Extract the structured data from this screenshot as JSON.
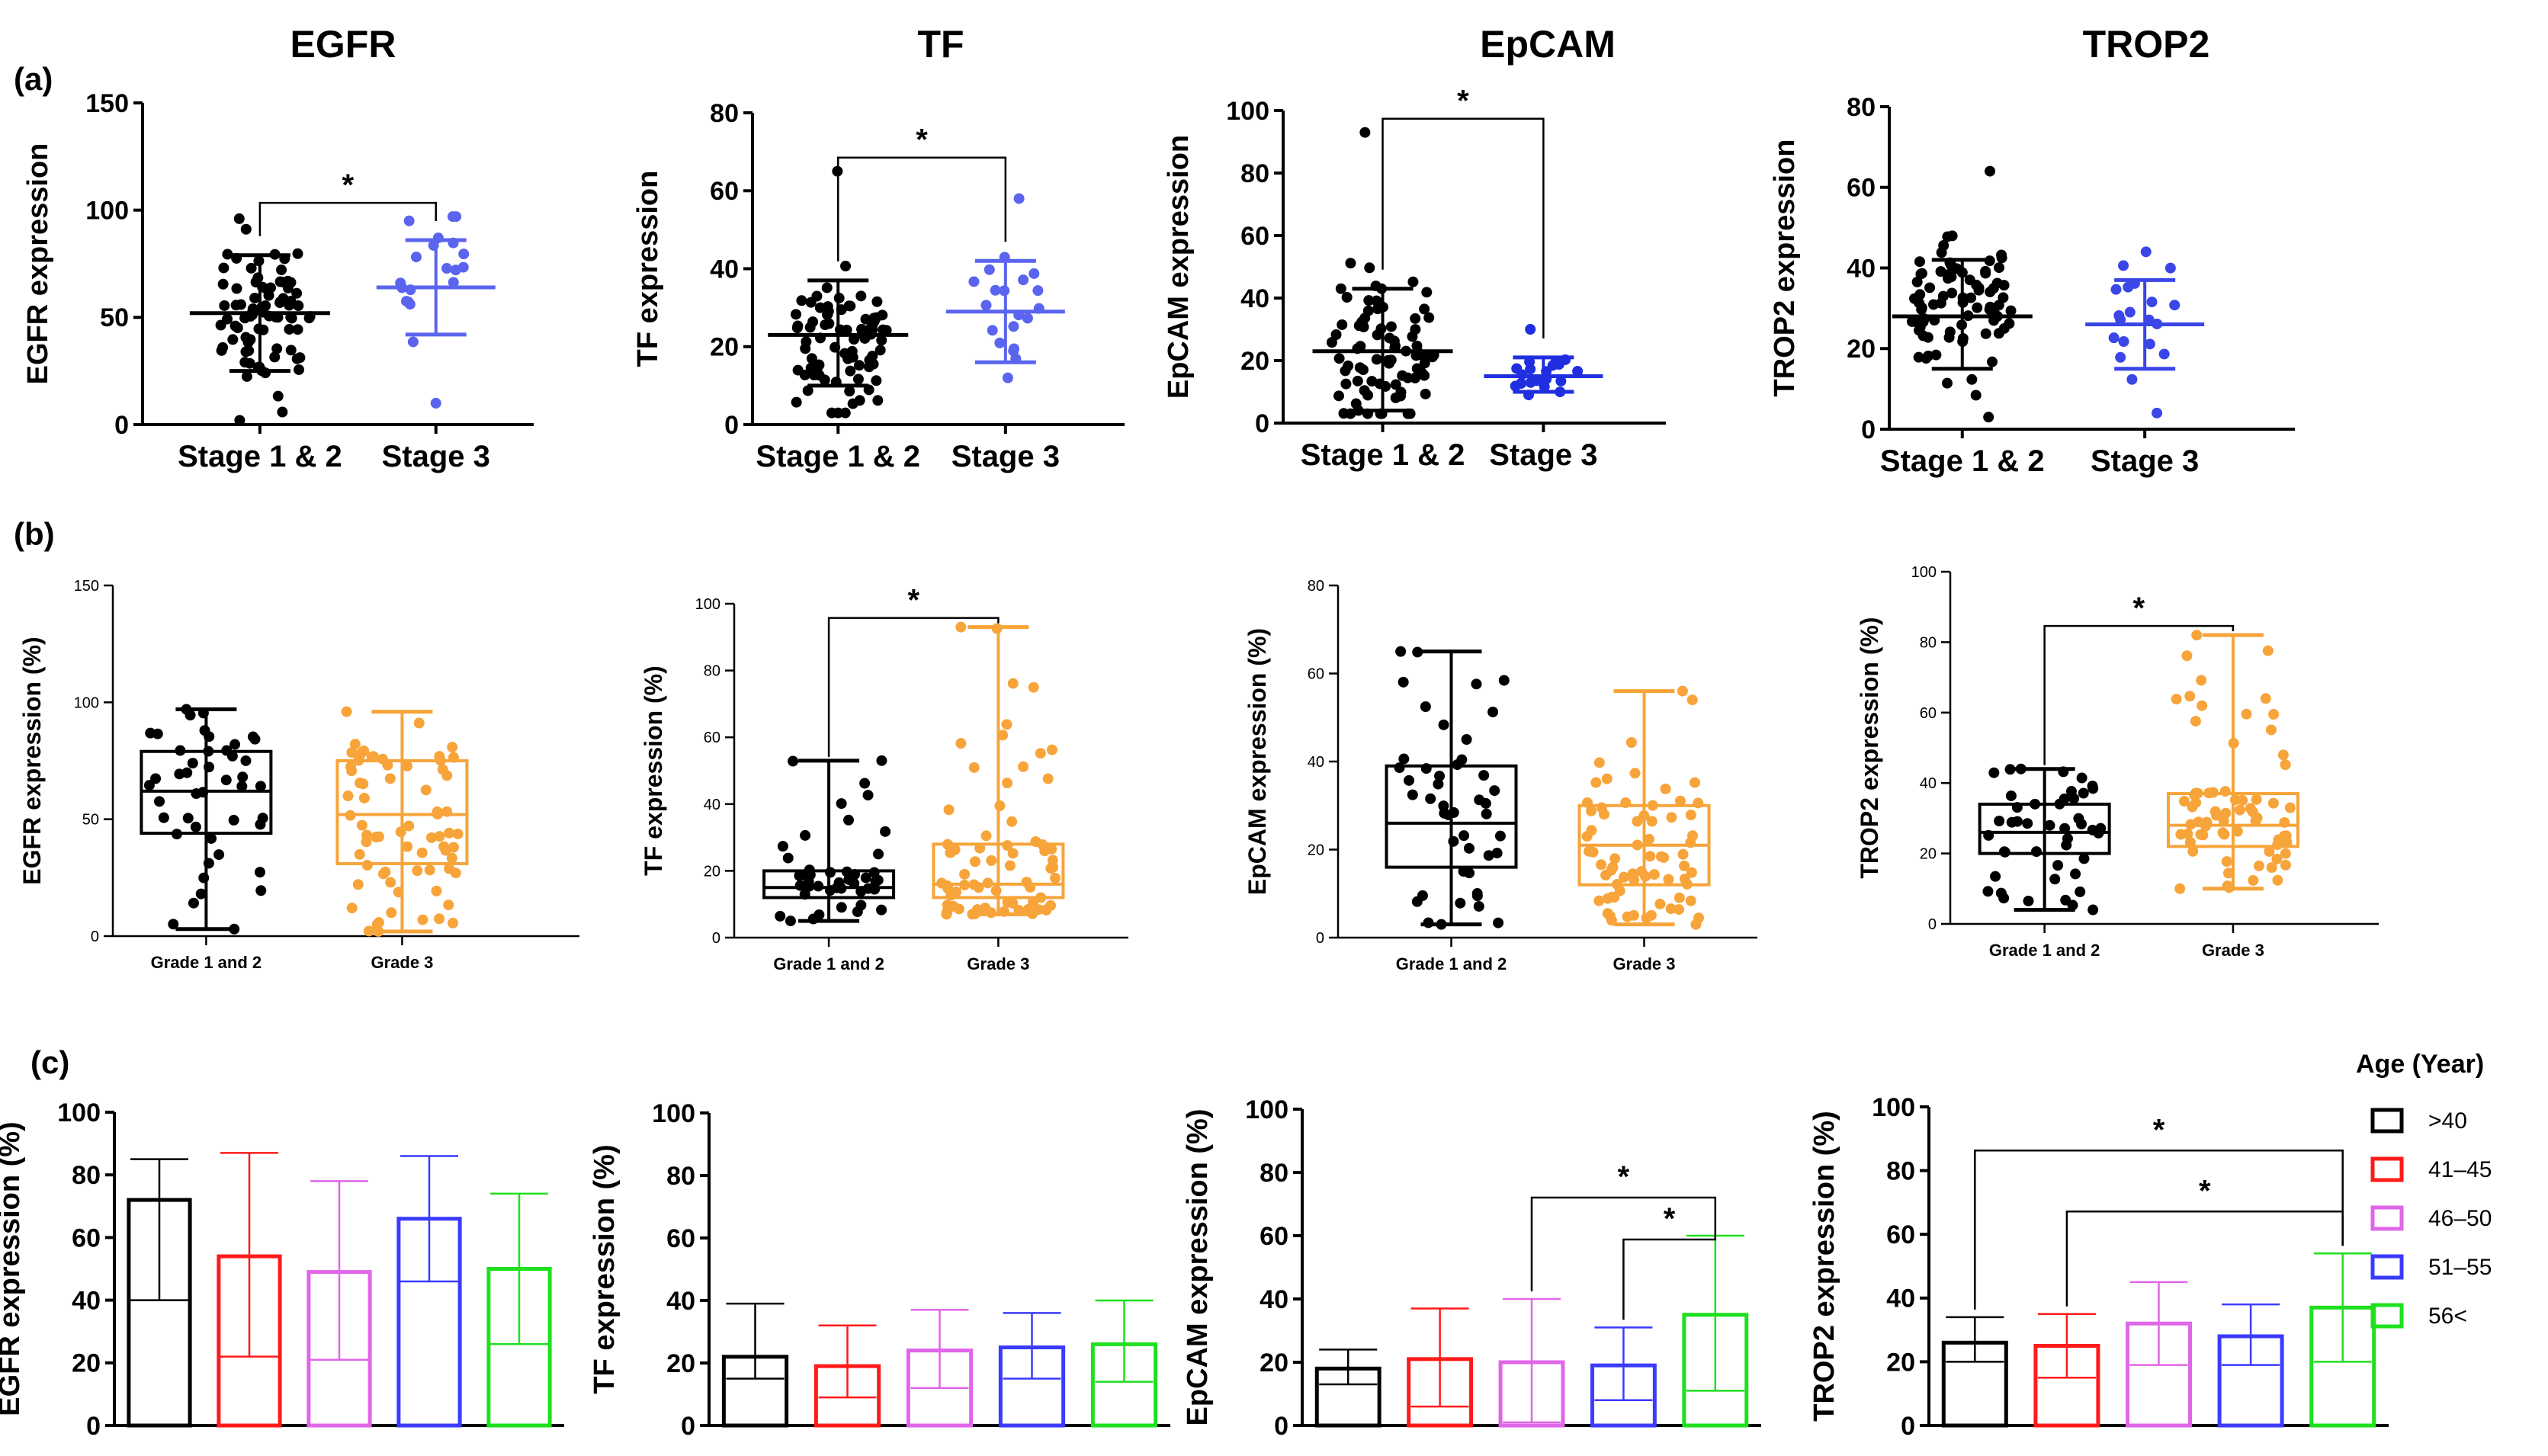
{
  "figure": {
    "panel_labels": [
      "(a)",
      "(b)",
      "(c)"
    ],
    "legend_title": "Age (Year)"
  },
  "chart_data": [
    {
      "id": "a-egfr",
      "type": "scatter",
      "row": "a",
      "title": "EGFR",
      "ylabel": "EGFR expression",
      "ylim": [
        0,
        150
      ],
      "yticks": [
        0,
        50,
        100,
        150
      ],
      "categories": [
        "Stage 1 & 2",
        "Stage 3"
      ],
      "summary": [
        {
          "mean": 52,
          "sd_low": 25,
          "sd_high": 79
        },
        {
          "mean": 64,
          "sd_low": 42,
          "sd_high": 86
        }
      ],
      "series_colors": [
        "#000000",
        "#5a64ee"
      ],
      "n": [
        82,
        20
      ],
      "range": [
        [
          2,
          96
        ],
        [
          10,
          97
        ]
      ],
      "significance": [
        {
          "from": 0,
          "to": 1,
          "label": "*"
        }
      ]
    },
    {
      "id": "a-tf",
      "type": "scatter",
      "row": "a",
      "title": "TF",
      "ylabel": "TF expression",
      "ylim": [
        0,
        80
      ],
      "yticks": [
        0,
        20,
        40,
        60,
        80
      ],
      "categories": [
        "Stage 1 & 2",
        "Stage 3"
      ],
      "summary": [
        {
          "mean": 23,
          "sd_low": 10,
          "sd_high": 37
        },
        {
          "mean": 29,
          "sd_low": 16,
          "sd_high": 42
        }
      ],
      "series_colors": [
        "#000000",
        "#5a64ee"
      ],
      "n": [
        82,
        20
      ],
      "range": [
        [
          3,
          65
        ],
        [
          12,
          58
        ]
      ],
      "significance": [
        {
          "from": 0,
          "to": 1,
          "label": "*"
        }
      ]
    },
    {
      "id": "a-epcam",
      "type": "scatter",
      "row": "a",
      "title": "EpCAM",
      "ylabel": "EpCAM expression",
      "ylim": [
        0,
        100
      ],
      "yticks": [
        0,
        20,
        40,
        60,
        80,
        100
      ],
      "categories": [
        "Stage 1 & 2",
        "Stage 3"
      ],
      "summary": [
        {
          "mean": 23,
          "sd_low": 4,
          "sd_high": 43
        },
        {
          "mean": 15,
          "sd_low": 10,
          "sd_high": 21
        }
      ],
      "series_colors": [
        "#000000",
        "#1f2fe0"
      ],
      "n": [
        82,
        20
      ],
      "range": [
        [
          3,
          93
        ],
        [
          9,
          30
        ]
      ],
      "significance": [
        {
          "from": 0,
          "to": 1,
          "label": "*"
        }
      ]
    },
    {
      "id": "a-trop2",
      "type": "scatter",
      "row": "a",
      "title": "TROP2",
      "ylabel": "TROP2 expression",
      "ylim": [
        0,
        80
      ],
      "yticks": [
        0,
        20,
        40,
        60,
        80
      ],
      "categories": [
        "Stage 1 & 2",
        "Stage 3"
      ],
      "summary": [
        {
          "mean": 28,
          "sd_low": 15,
          "sd_high": 42
        },
        {
          "mean": 26,
          "sd_low": 15,
          "sd_high": 37
        }
      ],
      "series_colors": [
        "#000000",
        "#3a46e6"
      ],
      "n": [
        82,
        20
      ],
      "range": [
        [
          3,
          64
        ],
        [
          4,
          44
        ]
      ],
      "significance": []
    },
    {
      "id": "b-egfr",
      "type": "box",
      "row": "b",
      "ylabel": "EGFR expression (%)",
      "ylim": [
        0,
        150
      ],
      "yticks": [
        0,
        50,
        100,
        150
      ],
      "categories": [
        "Grade 1 and 2",
        "Grade 3"
      ],
      "boxes": [
        {
          "min": 3,
          "q1": 44,
          "median": 62,
          "q3": 79,
          "max": 97
        },
        {
          "min": 2,
          "q1": 31,
          "median": 52,
          "q3": 75,
          "max": 96
        }
      ],
      "series_colors": [
        "#000000",
        "#f7a43a"
      ],
      "n": [
        45,
        70
      ],
      "significance": []
    },
    {
      "id": "b-tf",
      "type": "box",
      "row": "b",
      "ylabel": "TF expression (%)",
      "ylim": [
        0,
        100
      ],
      "yticks": [
        0,
        20,
        40,
        60,
        80,
        100
      ],
      "categories": [
        "Grade 1 and 2",
        "Grade 3"
      ],
      "boxes": [
        {
          "min": 5,
          "q1": 12,
          "median": 15,
          "q3": 20,
          "max": 53
        },
        {
          "min": 7,
          "q1": 12,
          "median": 16,
          "q3": 28,
          "max": 93
        }
      ],
      "series_colors": [
        "#000000",
        "#f7a43a"
      ],
      "n": [
        45,
        70
      ],
      "significance": [
        {
          "from": 0,
          "to": 1,
          "label": "*"
        }
      ]
    },
    {
      "id": "b-epcam",
      "type": "box",
      "row": "b",
      "ylabel": "EpCAM expression (%)",
      "ylim": [
        0,
        80
      ],
      "yticks": [
        0,
        20,
        40,
        60,
        80
      ],
      "categories": [
        "Grade 1 and 2",
        "Grade 3"
      ],
      "boxes": [
        {
          "min": 3,
          "q1": 16,
          "median": 26,
          "q3": 39,
          "max": 65
        },
        {
          "min": 3,
          "q1": 12,
          "median": 21,
          "q3": 30,
          "max": 56
        }
      ],
      "series_colors": [
        "#000000",
        "#f7a43a"
      ],
      "n": [
        45,
        70
      ],
      "significance": []
    },
    {
      "id": "b-trop2",
      "type": "box",
      "row": "b",
      "ylabel": "TROP2 expression (%)",
      "ylim": [
        0,
        100
      ],
      "yticks": [
        0,
        20,
        40,
        60,
        80,
        100
      ],
      "categories": [
        "Grade 1 and 2",
        "Grade 3"
      ],
      "boxes": [
        {
          "min": 4,
          "q1": 20,
          "median": 26,
          "q3": 34,
          "max": 44
        },
        {
          "min": 10,
          "q1": 22,
          "median": 28,
          "q3": 37,
          "max": 82
        }
      ],
      "series_colors": [
        "#000000",
        "#f7a43a"
      ],
      "n": [
        45,
        70
      ],
      "significance": [
        {
          "from": 0,
          "to": 1,
          "label": "*"
        }
      ]
    },
    {
      "id": "c-egfr",
      "type": "bar",
      "row": "c",
      "ylabel": "EGFR expression (%)",
      "ylim": [
        0,
        100
      ],
      "yticks": [
        0,
        20,
        40,
        60,
        80,
        100
      ],
      "categories": [
        ">40",
        "41–45",
        "46–50",
        "51–55",
        "56<"
      ],
      "values": [
        72,
        54,
        49,
        66,
        50
      ],
      "err_low": [
        40,
        22,
        21,
        46,
        26
      ],
      "err_high": [
        85,
        87,
        78,
        86,
        74
      ],
      "significance": []
    },
    {
      "id": "c-tf",
      "type": "bar",
      "row": "c",
      "ylabel": "TF expression (%)",
      "ylim": [
        0,
        100
      ],
      "yticks": [
        0,
        20,
        40,
        60,
        80,
        100
      ],
      "categories": [
        ">40",
        "41–45",
        "46–50",
        "51–55",
        "56<"
      ],
      "values": [
        22,
        19,
        24,
        25,
        26
      ],
      "err_low": [
        15,
        9,
        12,
        15,
        14
      ],
      "err_high": [
        39,
        32,
        37,
        36,
        40
      ],
      "significance": []
    },
    {
      "id": "c-epcam",
      "type": "bar",
      "row": "c",
      "ylabel": "EpCAM expression (%)",
      "ylim": [
        0,
        100
      ],
      "yticks": [
        0,
        20,
        40,
        60,
        80,
        100
      ],
      "categories": [
        ">40",
        "41–45",
        "46–50",
        "51–55",
        "56<"
      ],
      "values": [
        18,
        21,
        20,
        19,
        35
      ],
      "err_low": [
        13,
        6,
        1,
        8,
        11
      ],
      "err_high": [
        24,
        37,
        40,
        31,
        60
      ],
      "significance": [
        {
          "from": 2,
          "to": 4,
          "label": "*",
          "level": 0
        },
        {
          "from": 3,
          "to": 4,
          "label": "*",
          "level": 1
        }
      ]
    },
    {
      "id": "c-trop2",
      "type": "bar",
      "row": "c",
      "ylabel": "TROP2 expression (%)",
      "ylim": [
        0,
        100
      ],
      "yticks": [
        0,
        20,
        40,
        60,
        80,
        100
      ],
      "categories": [
        ">40",
        "41–45",
        "46–50",
        "51–55",
        "56<"
      ],
      "values": [
        26,
        25,
        32,
        28,
        37
      ],
      "err_low": [
        20,
        15,
        19,
        19,
        20
      ],
      "err_high": [
        34,
        35,
        45,
        38,
        54
      ],
      "significance": [
        {
          "from": 0,
          "to": 4,
          "label": "*",
          "level": 0
        },
        {
          "from": 1,
          "to": 4,
          "label": "*",
          "level": 1
        }
      ]
    }
  ],
  "legend": {
    "title": "Age (Year)",
    "items": [
      {
        "label": ">40",
        "color": "#000000"
      },
      {
        "label": "41–45",
        "color": "#ff1a1a"
      },
      {
        "label": "46–50",
        "color": "#e066e8"
      },
      {
        "label": "51–55",
        "color": "#3b3bff"
      },
      {
        "label": "56<",
        "color": "#1fe01f"
      }
    ]
  }
}
